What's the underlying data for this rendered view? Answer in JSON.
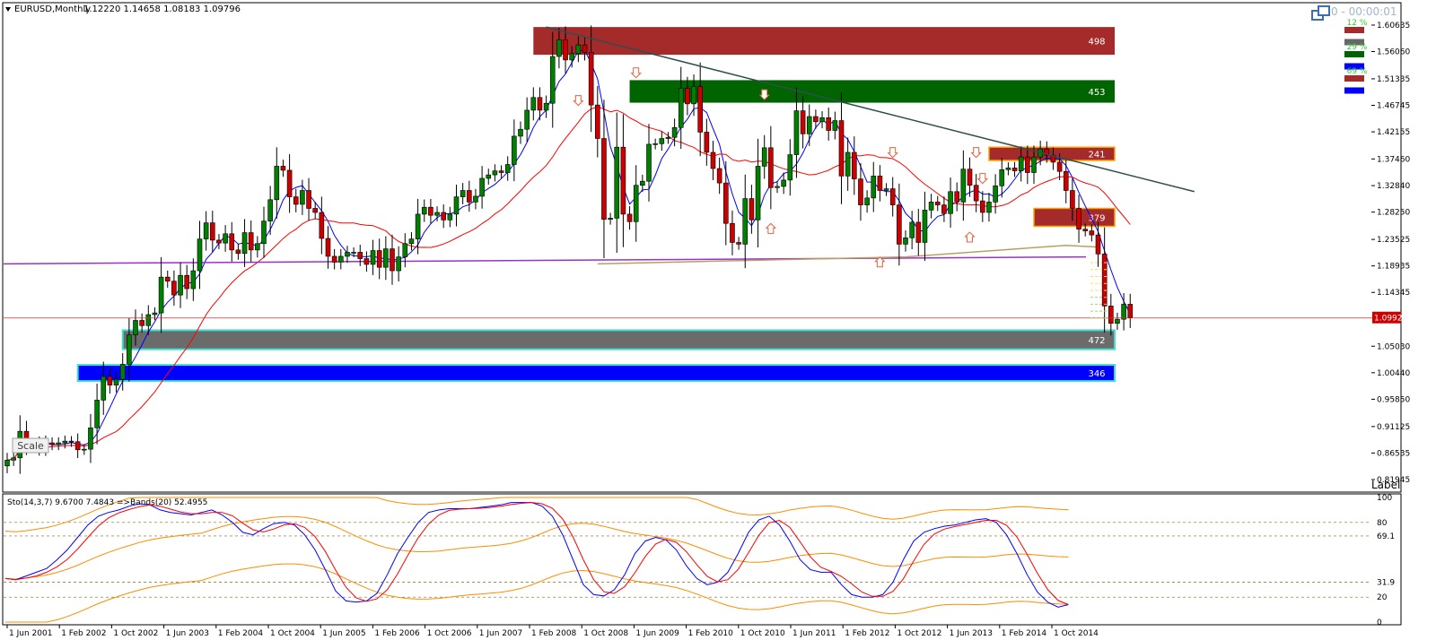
{
  "header": {
    "symbol_title": "EURUSD,Monthly",
    "ohlc": "1.12220 1.14658 1.08183 1.09796",
    "timer": "0 - 00:00:01"
  },
  "panel_label": "Label",
  "scale_button": "Scale",
  "zone_legend": [
    {
      "color": "#a52a2a",
      "percent": "12 %"
    },
    {
      "color": "#666666",
      "percent": ""
    },
    {
      "color": "#006400",
      "percent": "29 %"
    },
    {
      "color": "#0000ff",
      "percent": ""
    },
    {
      "color": "#a52a2a",
      "percent": "69 %"
    },
    {
      "color": "#0000ff",
      "percent": ""
    }
  ],
  "colors": {
    "bull_candle": "#008000",
    "bear_candle": "#cc0000",
    "ma_fast": "#0000ff",
    "ma_slow": "#ff0000",
    "ma_long": "#9932cc",
    "ma_mid": "#b8a060",
    "trendline": "#2f4f4f",
    "sto_main": "#0000ff",
    "sto_signal": "#ff0000",
    "bands": "#ff8c00",
    "zone_resist": "#a52a2a",
    "zone_demand_green": "#006400",
    "zone_support_gray": "#6b6b6b",
    "zone_support_blue": "#0000ff",
    "current_price_tag": "#cc0000"
  },
  "chart_data": [
    {
      "type": "candlestick",
      "title": "EURUSD,Monthly",
      "ylim": [
        0.8,
        1.63
      ],
      "y_ticks": [
        "1.60635",
        "1.56060",
        "1.51335",
        "1.46745",
        "1.42155",
        "1.37460",
        "1.32840",
        "1.28250",
        "1.23525",
        "1.18935",
        "1.14345",
        "1.09924",
        "1.05030",
        "1.00440",
        "0.95850",
        "0.91125",
        "0.86535",
        "0.81945"
      ],
      "current_price": "1.09924",
      "x_labels": [
        "1 Jun 2001",
        "1 Feb 2002",
        "1 Oct 2002",
        "1 Jun 2003",
        "1 Feb 2004",
        "1 Oct 2004",
        "1 Jun 2005",
        "1 Feb 2006",
        "1 Oct 2006",
        "1 Jun 2007",
        "1 Feb 2008",
        "1 Oct 2008",
        "1 Jun 2009",
        "1 Feb 2010",
        "1 Oct 2010",
        "1 Jun 2011",
        "1 Feb 2012",
        "1 Oct 2012",
        "1 Jun 2013",
        "1 Feb 2014",
        "1 Oct 2014"
      ],
      "zones": [
        {
          "label": "498",
          "top": 1.603,
          "bottom": 1.555,
          "start_month": 82,
          "color": "zone_resist"
        },
        {
          "label": "453",
          "top": 1.511,
          "bottom": 1.472,
          "start_month": 97,
          "color": "zone_demand_green"
        },
        {
          "label": "241",
          "top": 1.395,
          "bottom": 1.372,
          "start_month": 153,
          "color": "zone_resist"
        },
        {
          "label": "379",
          "top": 1.289,
          "bottom": 1.258,
          "start_month": 160,
          "color": "zone_resist"
        },
        {
          "label": "472",
          "top": 1.078,
          "bottom": 1.045,
          "start_month": 18,
          "color": "zone_support_gray"
        },
        {
          "label": "346",
          "top": 1.018,
          "bottom": 0.99,
          "start_month": 11,
          "color": "zone_support_blue"
        }
      ],
      "trendline": {
        "from": [
          84,
          1.603
        ],
        "to": [
          185,
          1.318
        ]
      },
      "ma_long_level": [
        1.193,
        1.205
      ],
      "close_series": [
        0.853,
        0.857,
        0.903,
        0.88,
        0.882,
        0.873,
        0.883,
        0.88,
        0.883,
        0.886,
        0.885,
        0.871,
        0.872,
        0.909,
        0.957,
        0.998,
        0.983,
        0.993,
        1.019,
        1.07,
        1.095,
        1.086,
        1.105,
        1.108,
        1.17,
        1.163,
        1.139,
        1.173,
        1.15,
        1.181,
        1.236,
        1.264,
        1.234,
        1.229,
        1.245,
        1.217,
        1.211,
        1.247,
        1.217,
        1.228,
        1.267,
        1.304,
        1.362,
        1.355,
        1.309,
        1.296,
        1.32,
        1.289,
        1.282,
        1.237,
        1.206,
        1.196,
        1.206,
        1.213,
        1.213,
        1.202,
        1.192,
        1.216,
        1.187,
        1.219,
        1.181,
        1.205,
        1.228,
        1.236,
        1.279,
        1.291,
        1.277,
        1.282,
        1.269,
        1.279,
        1.309,
        1.32,
        1.3,
        1.31,
        1.341,
        1.347,
        1.354,
        1.351,
        1.365,
        1.414,
        1.426,
        1.459,
        1.481,
        1.459,
        1.471,
        1.552,
        1.581,
        1.546,
        1.557,
        1.572,
        1.559,
        1.468,
        1.41,
        1.27,
        1.272,
        1.395,
        1.279,
        1.266,
        1.329,
        1.336,
        1.4,
        1.401,
        1.41,
        1.412,
        1.429,
        1.497,
        1.47,
        1.5,
        1.421,
        1.386,
        1.358,
        1.333,
        1.263,
        1.23,
        1.227,
        1.306,
        1.269,
        1.362,
        1.394,
        1.325,
        1.327,
        1.338,
        1.382,
        1.458,
        1.418,
        1.448,
        1.439,
        1.446,
        1.424,
        1.441,
        1.345,
        1.386,
        1.34,
        1.295,
        1.307,
        1.345,
        1.32,
        1.323,
        1.295,
        1.227,
        1.238,
        1.265,
        1.23,
        1.286,
        1.3,
        1.295,
        1.28,
        1.318,
        1.3,
        1.357,
        1.329,
        1.302,
        1.282,
        1.3,
        1.328,
        1.356,
        1.359,
        1.354,
        1.378,
        1.351,
        1.378,
        1.392,
        1.381,
        1.369,
        1.353,
        1.32,
        1.289,
        1.253,
        1.25,
        1.243,
        1.21,
        1.12,
        1.09,
        1.097,
        1.123,
        1.1
      ],
      "stoch_main": [
        35,
        34,
        37,
        40,
        43,
        50,
        58,
        68,
        78,
        85,
        88,
        90,
        93,
        95,
        94,
        90,
        88,
        87,
        86,
        88,
        90,
        86,
        80,
        72,
        70,
        75,
        79,
        80,
        78,
        70,
        58,
        42,
        25,
        17,
        16,
        17,
        23,
        38,
        55,
        68,
        80,
        88,
        90,
        91,
        91,
        91,
        92,
        93,
        94,
        96,
        96,
        96,
        93,
        85,
        70,
        50,
        30,
        22,
        21,
        26,
        38,
        55,
        65,
        68,
        66,
        58,
        45,
        35,
        30,
        32,
        40,
        55,
        72,
        82,
        85,
        78,
        65,
        50,
        42,
        40,
        40,
        30,
        22,
        20,
        20,
        22,
        32,
        50,
        65,
        72,
        75,
        77,
        78,
        80,
        82,
        83,
        80,
        70,
        55,
        38,
        24,
        16,
        12,
        14
      ]
    },
    {
      "type": "line",
      "title": "Sto(14,3,7) 9.6700 7.4843 =>Bands(20) 52.4955",
      "ylim": [
        0,
        100
      ],
      "y_ticks": [
        "100",
        "80",
        "69.1",
        "31.9",
        "20",
        "0"
      ],
      "levels": [
        80,
        69.1,
        31.9,
        20
      ]
    }
  ]
}
